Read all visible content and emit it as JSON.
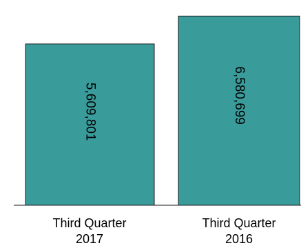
{
  "chart_data": {
    "type": "bar",
    "categories": [
      "Third Quarter 2017",
      "Third Quarter 2016"
    ],
    "category_lines": [
      [
        "Third Quarter",
        "2017"
      ],
      [
        "Third Quarter",
        "2016"
      ]
    ],
    "values": [
      5609801,
      6580699
    ],
    "value_labels": [
      "5,609,801",
      "6,580,699"
    ],
    "title": "",
    "xlabel": "",
    "ylabel": "",
    "ylim": [
      0,
      6900000
    ],
    "grid": false,
    "legend": "none",
    "colors": {
      "bar_fill": "#3a9b9b",
      "bar_stroke": "#1a1a1a",
      "axis": "#1a1a1a",
      "label": "#000000"
    }
  }
}
